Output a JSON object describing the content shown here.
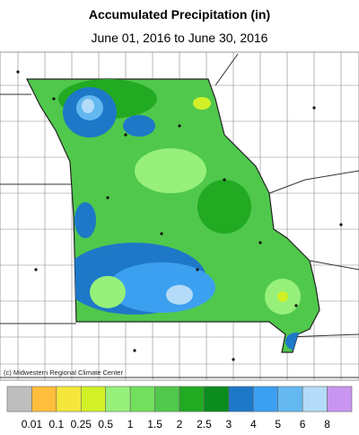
{
  "header": {
    "title": "Accumulated Precipitation (in)",
    "subtitle": "June 01, 2016 to June 30, 2016"
  },
  "credit": "(c) Midwestern Regional Climate Center",
  "legend": {
    "labels": [
      0.01,
      0.1,
      0.25,
      0.5,
      1,
      1.5,
      2,
      2.5,
      3,
      4,
      5,
      6,
      8
    ],
    "colors": [
      "#bebebe",
      "#ffbe3c",
      "#f5e63c",
      "#d2f028",
      "#96f07a",
      "#72e05e",
      "#50c84c",
      "#22aa22",
      "#0a8c1e",
      "#1e78c8",
      "#3ca0f0",
      "#64b8f0",
      "#b4dcf8",
      "#c896f0"
    ]
  }
}
